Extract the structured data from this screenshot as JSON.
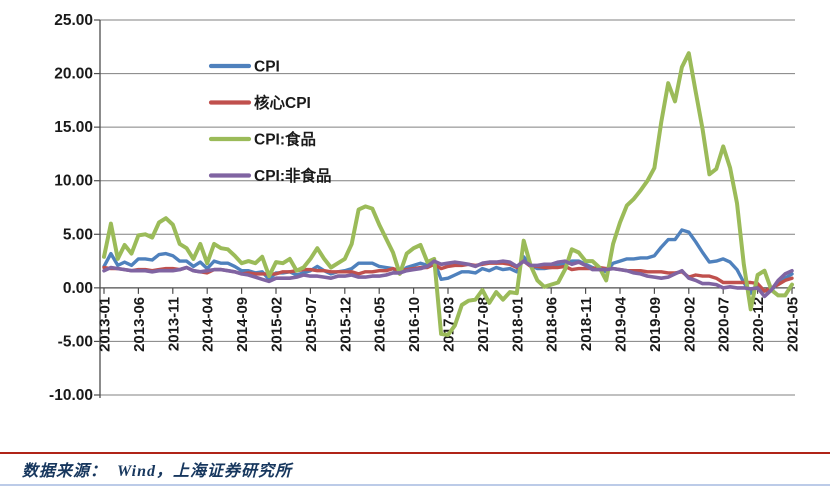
{
  "chart_data": {
    "type": "line",
    "title": "",
    "x_start": "2013-01",
    "x_end": "2021-05",
    "x_interval": "monthly",
    "x_tick_every": 5,
    "x_ticks": [
      "2013-01",
      "2013-06",
      "2013-11",
      "2014-04",
      "2014-09",
      "2015-02",
      "2015-07",
      "2015-12",
      "2016-05",
      "2016-10",
      "2017-03",
      "2017-08",
      "2018-01",
      "2018-06",
      "2018-11",
      "2019-04",
      "2019-09",
      "2020-02",
      "2020-07",
      "2020-12",
      "2021-05"
    ],
    "ylim": [
      -10,
      25
    ],
    "y_ticks": [
      25,
      20,
      15,
      10,
      5,
      0,
      -5,
      -10
    ],
    "y_tick_labels": [
      "25.00",
      "20.00",
      "15.00",
      "10.00",
      "5.00",
      "0.00",
      "-5.00",
      "-10.00"
    ],
    "grid": true,
    "legend_position": "upper-left-inside",
    "axis_color": "#4d4d4d",
    "grid_color": "#808080",
    "tick_label_color": "#1a1a1a",
    "series": [
      {
        "name": "CPI",
        "slug": "cpi",
        "color": "#4F81BD",
        "values": [
          2.0,
          3.2,
          2.1,
          2.4,
          2.1,
          2.7,
          2.7,
          2.6,
          3.1,
          3.2,
          3.0,
          2.5,
          2.5,
          2.0,
          2.4,
          1.8,
          2.5,
          2.3,
          2.3,
          2.0,
          1.6,
          1.6,
          1.4,
          1.5,
          0.8,
          1.4,
          1.4,
          1.5,
          1.2,
          1.4,
          1.6,
          2.0,
          1.6,
          1.3,
          1.5,
          1.6,
          1.8,
          2.3,
          2.3,
          2.3,
          2.0,
          1.9,
          1.8,
          1.3,
          1.9,
          2.1,
          2.3,
          2.1,
          2.5,
          0.8,
          0.9,
          1.2,
          1.5,
          1.5,
          1.4,
          1.8,
          1.6,
          1.9,
          1.7,
          1.8,
          1.5,
          2.9,
          2.1,
          1.8,
          1.8,
          1.9,
          2.1,
          2.3,
          2.5,
          2.5,
          2.2,
          1.9,
          1.7,
          1.5,
          2.3,
          2.5,
          2.7,
          2.7,
          2.8,
          2.8,
          3.0,
          3.8,
          4.5,
          4.5,
          5.4,
          5.2,
          4.3,
          3.3,
          2.4,
          2.5,
          2.7,
          2.4,
          1.7,
          0.5,
          -0.5,
          0.2,
          -0.3,
          -0.2,
          0.4,
          0.9,
          1.3
        ]
      },
      {
        "name": "核心CPI",
        "slug": "core-cpi",
        "color": "#C0504D",
        "values": [
          1.9,
          1.8,
          1.8,
          1.7,
          1.6,
          1.7,
          1.7,
          1.6,
          1.7,
          1.8,
          1.8,
          1.7,
          1.9,
          1.6,
          1.5,
          1.4,
          1.7,
          1.7,
          1.6,
          1.5,
          1.3,
          1.4,
          1.3,
          1.3,
          1.3,
          1.3,
          1.5,
          1.5,
          1.6,
          1.7,
          1.7,
          1.6,
          1.6,
          1.5,
          1.5,
          1.5,
          1.5,
          1.3,
          1.5,
          1.5,
          1.6,
          1.6,
          1.8,
          1.6,
          1.7,
          1.8,
          1.9,
          1.9,
          2.2,
          1.8,
          2.0,
          2.1,
          2.1,
          2.2,
          2.1,
          2.2,
          2.3,
          2.3,
          2.3,
          2.2,
          1.9,
          2.5,
          2.0,
          2.0,
          1.9,
          1.9,
          1.9,
          2.0,
          1.7,
          1.8,
          1.8,
          1.8,
          1.9,
          1.8,
          1.8,
          1.7,
          1.6,
          1.6,
          1.6,
          1.5,
          1.5,
          1.5,
          1.4,
          1.4,
          1.5,
          1.0,
          1.2,
          1.1,
          1.1,
          0.9,
          0.5,
          0.5,
          0.5,
          0.5,
          0.5,
          0.4,
          -0.3,
          0.0,
          0.3,
          0.7,
          0.9
        ]
      },
      {
        "name": "CPI:食品",
        "slug": "cpi-food",
        "color": "#9BBB59",
        "values": [
          2.9,
          6.0,
          2.7,
          4.0,
          3.2,
          4.9,
          5.0,
          4.7,
          6.1,
          6.5,
          5.9,
          4.1,
          3.7,
          2.7,
          4.1,
          2.3,
          4.1,
          3.7,
          3.6,
          3.0,
          2.3,
          2.5,
          2.3,
          2.9,
          1.1,
          2.4,
          2.3,
          2.7,
          1.6,
          1.9,
          2.7,
          3.7,
          2.7,
          1.9,
          2.3,
          2.7,
          4.1,
          7.3,
          7.6,
          7.4,
          5.9,
          4.6,
          3.3,
          1.3,
          3.2,
          3.7,
          4.0,
          2.4,
          2.7,
          -4.3,
          -4.4,
          -3.5,
          -1.6,
          -1.2,
          -1.1,
          -0.2,
          -1.4,
          -0.4,
          -1.1,
          -0.4,
          -0.5,
          4.4,
          2.1,
          0.7,
          0.1,
          0.3,
          0.5,
          1.7,
          3.6,
          3.3,
          2.5,
          2.5,
          1.9,
          0.7,
          4.1,
          6.1,
          7.7,
          8.3,
          9.1,
          10.0,
          11.2,
          15.5,
          19.1,
          17.4,
          20.6,
          21.9,
          18.3,
          14.8,
          10.6,
          11.1,
          13.2,
          11.2,
          7.9,
          2.2,
          -2.0,
          1.2,
          1.6,
          -0.2,
          -0.7,
          -0.7,
          0.3
        ]
      },
      {
        "name": "CPI:非食品",
        "slug": "cpi-nonfood",
        "color": "#8064A2",
        "values": [
          1.6,
          1.9,
          1.8,
          1.7,
          1.6,
          1.6,
          1.6,
          1.5,
          1.6,
          1.6,
          1.6,
          1.7,
          1.9,
          1.6,
          1.5,
          1.6,
          1.7,
          1.7,
          1.6,
          1.5,
          1.3,
          1.2,
          1.0,
          0.8,
          0.6,
          0.9,
          0.9,
          0.9,
          1.0,
          1.2,
          1.1,
          1.1,
          1.0,
          0.9,
          1.1,
          1.1,
          1.2,
          1.0,
          1.0,
          1.1,
          1.1,
          1.2,
          1.4,
          1.4,
          1.6,
          1.7,
          1.8,
          2.0,
          2.5,
          2.2,
          2.3,
          2.4,
          2.3,
          2.2,
          2.0,
          2.3,
          2.4,
          2.4,
          2.5,
          2.4,
          2.0,
          2.5,
          2.1,
          2.1,
          2.2,
          2.2,
          2.4,
          2.5,
          2.2,
          2.4,
          2.1,
          1.7,
          1.7,
          1.7,
          1.8,
          1.7,
          1.6,
          1.4,
          1.3,
          1.1,
          1.0,
          0.9,
          1.0,
          1.3,
          1.6,
          0.9,
          0.7,
          0.4,
          0.4,
          0.3,
          0.0,
          0.1,
          0.0,
          0.0,
          -0.1,
          0.0,
          -0.8,
          -0.2,
          0.7,
          1.3,
          1.6
        ]
      }
    ]
  },
  "footer": {
    "source_text": "数据来源：  Wind，上海证券研究所",
    "accent_line_color": "#B02418",
    "bottom_line_color": "#BCCBE8",
    "text_color": "#17375E"
  }
}
